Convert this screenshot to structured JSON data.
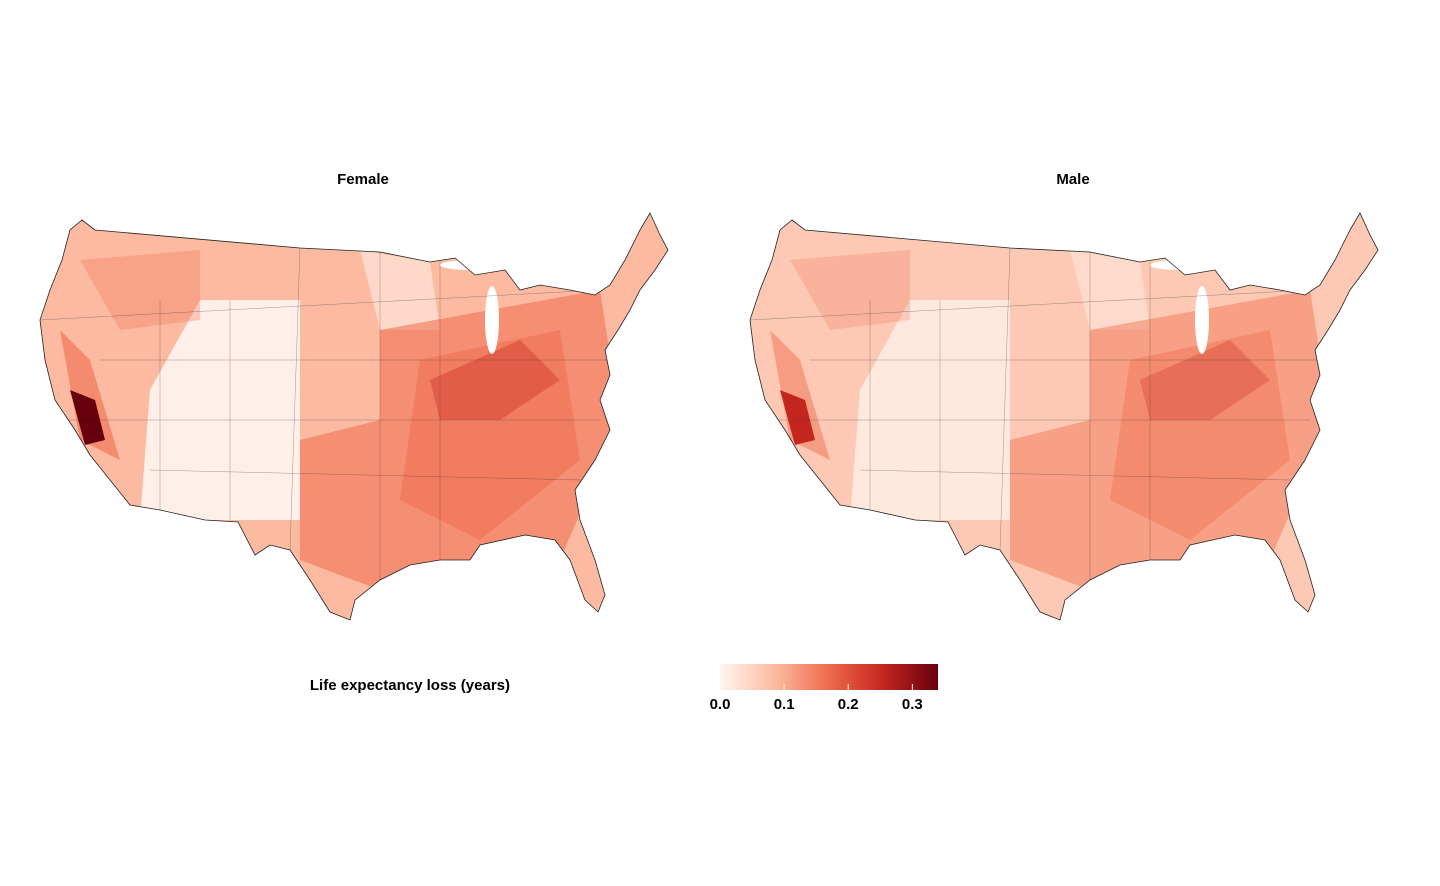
{
  "maps": [
    {
      "title": "Female"
    },
    {
      "title": "Male"
    }
  ],
  "legend": {
    "title": "Life expectancy loss (years)",
    "range": [
      0,
      0.34
    ],
    "ticks": [
      {
        "value": 0,
        "label": "0.0"
      },
      0.1,
      0.2,
      0.3
    ],
    "colors": [
      "#fff5f0",
      "#fcbba1",
      "#ef6a4c",
      "#c4261f",
      "#67000d"
    ]
  }
}
